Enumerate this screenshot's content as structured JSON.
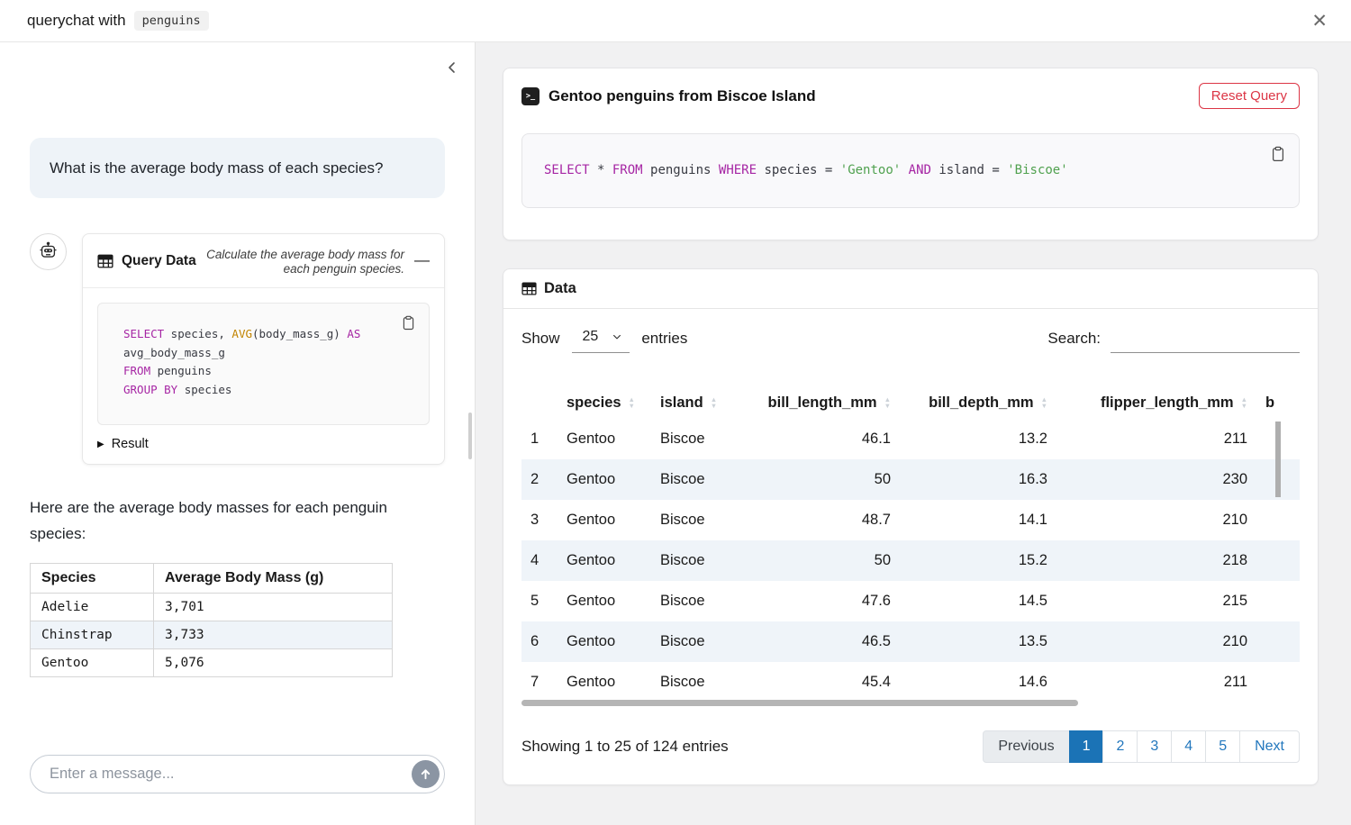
{
  "colors": {
    "accent_red": "#dc3545",
    "pagination_active_blue": "#1b73b6",
    "link_blue": "#2277bd",
    "stripe_blue": "#eff4f9",
    "sql_keyword": "#a626a4",
    "sql_function": "#c18401",
    "sql_string": "#50a14f"
  },
  "icons": {
    "close": "✕",
    "minimize": "—",
    "result_caret": "▶",
    "terminal_glyph": ">_"
  },
  "titlebar": {
    "title_prefix": "querychat with",
    "dataset_name": "penguins"
  },
  "sidebar": {
    "user_message": "What is the average body mass of each species?",
    "tool_card": {
      "title": "Query Data",
      "subtitle": "Calculate the average body mass for each penguin species.",
      "sql": [
        [
          [
            "kw",
            "SELECT"
          ],
          [
            "plain",
            " species, "
          ],
          [
            "fn",
            "AVG"
          ],
          [
            "plain",
            "(body_mass_g) "
          ],
          [
            "kw",
            "AS"
          ]
        ],
        [
          [
            "plain",
            "avg_body_mass_g"
          ]
        ],
        [
          [
            "kw",
            "FROM"
          ],
          [
            "plain",
            " penguins"
          ]
        ],
        [
          [
            "kw",
            "GROUP BY"
          ],
          [
            "plain",
            " species"
          ]
        ]
      ],
      "result_label": "Result"
    },
    "answer_text": "Here are the average body masses for each penguin species:",
    "result_table": {
      "headers": [
        "Species",
        "Average Body Mass (g)"
      ],
      "rows": [
        [
          "Adelie",
          "3,701"
        ],
        [
          "Chinstrap",
          "3,733"
        ],
        [
          "Gentoo",
          "5,076"
        ]
      ]
    },
    "chat_input": {
      "placeholder": "Enter a message..."
    }
  },
  "main": {
    "query_card": {
      "title": "Gentoo penguins from Biscoe Island",
      "reset_button_label": "Reset Query",
      "sql": [
        [
          [
            "kw",
            "SELECT"
          ],
          [
            "plain",
            " * "
          ],
          [
            "kw",
            "FROM"
          ],
          [
            "plain",
            " penguins "
          ],
          [
            "kw",
            "WHERE"
          ],
          [
            "plain",
            " species = "
          ],
          [
            "str",
            "'Gentoo'"
          ],
          [
            "plain",
            " "
          ],
          [
            "kw",
            "AND"
          ],
          [
            "plain",
            " island = "
          ],
          [
            "str",
            "'Biscoe'"
          ]
        ]
      ]
    },
    "data_card": {
      "title": "Data",
      "show_label": "Show",
      "page_size": "25",
      "entries_label": "entries",
      "search_label": "Search:",
      "search_value": "",
      "table": {
        "columns": [
          {
            "label": "",
            "align": "left",
            "sortable": false
          },
          {
            "label": "species",
            "align": "left",
            "sortable": true
          },
          {
            "label": "island",
            "align": "left",
            "sortable": true
          },
          {
            "label": "bill_length_mm",
            "align": "right",
            "sortable": true
          },
          {
            "label": "bill_depth_mm",
            "align": "right",
            "sortable": true
          },
          {
            "label": "flipper_length_mm",
            "align": "right",
            "sortable": true
          },
          {
            "label": "b",
            "align": "left",
            "sortable": false
          }
        ],
        "rows": [
          [
            "1",
            "Gentoo",
            "Biscoe",
            "46.1",
            "13.2",
            "211",
            ""
          ],
          [
            "2",
            "Gentoo",
            "Biscoe",
            "50",
            "16.3",
            "230",
            ""
          ],
          [
            "3",
            "Gentoo",
            "Biscoe",
            "48.7",
            "14.1",
            "210",
            ""
          ],
          [
            "4",
            "Gentoo",
            "Biscoe",
            "50",
            "15.2",
            "218",
            ""
          ],
          [
            "5",
            "Gentoo",
            "Biscoe",
            "47.6",
            "14.5",
            "215",
            ""
          ],
          [
            "6",
            "Gentoo",
            "Biscoe",
            "46.5",
            "13.5",
            "210",
            ""
          ],
          [
            "7",
            "Gentoo",
            "Biscoe",
            "45.4",
            "14.6",
            "211",
            ""
          ]
        ]
      },
      "info_text": "Showing 1 to 25 of 124 entries",
      "pagination": {
        "prev_label": "Previous",
        "pages": [
          "1",
          "2",
          "3",
          "4",
          "5"
        ],
        "active_page": "1",
        "next_label": "Next"
      }
    }
  }
}
